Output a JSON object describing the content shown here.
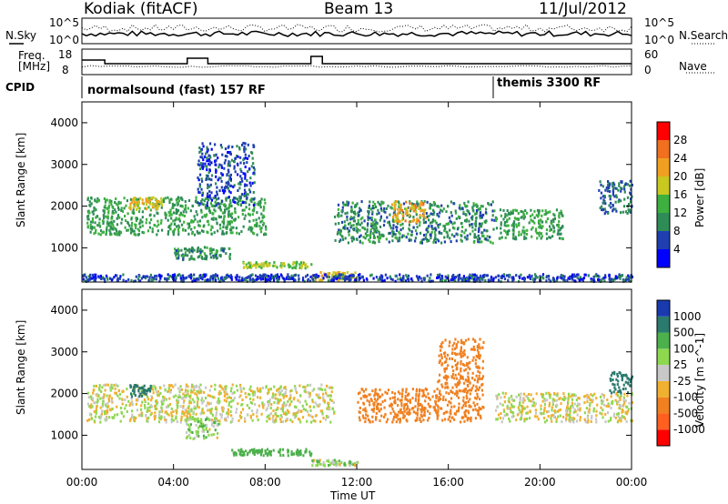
{
  "header": {
    "station": "Kodiak (fitACF)",
    "beam": "Beam 13",
    "date": "11/Jul/2012"
  },
  "side_labels": {
    "nsky": "N.Sky",
    "nsearch": "N.Search",
    "freq_line1": "Freq.",
    "freq_line2": "[MHz]",
    "nave": "Nave",
    "cpid": "CPID"
  },
  "noise_panel": {
    "left_ticks": [
      "10^5",
      "10^0"
    ],
    "right_ticks": [
      "10^5",
      "10^0"
    ]
  },
  "freq_panel": {
    "left_ticks": [
      "18",
      "8"
    ],
    "right_ticks": [
      "60",
      "0"
    ]
  },
  "cpid_panel": {
    "segments": [
      {
        "label": "normalsound (fast) 157 RF",
        "start": "00:00",
        "end": "18:00"
      },
      {
        "label": "themis 3300 RF",
        "start": "18:00",
        "end": "24:00"
      }
    ]
  },
  "colors": {
    "power": [
      "#0000ff",
      "#1f3fb0",
      "#2e8c57",
      "#3db040",
      "#c8c820",
      "#f0a020",
      "#f07020",
      "#ff0000"
    ],
    "velocity": [
      "#1a3ab0",
      "#2a7a6e",
      "#4cb04c",
      "#8ed850",
      "#c8c8c8",
      "#f0b030",
      "#f08020",
      "#ff6020",
      "#ff0000"
    ]
  },
  "chart_data": [
    {
      "type": "heatmap",
      "name": "power",
      "xlabel": "",
      "ylabel": "Slant Range [km]",
      "xlim": [
        "00:00",
        "24:00"
      ],
      "ylim": [
        180,
        4500
      ],
      "y_ticks": [
        "1000",
        "2000",
        "3000",
        "4000"
      ],
      "colorbar": {
        "label": "Power [dB]",
        "ticks": [
          "4",
          "8",
          "12",
          "16",
          "20",
          "24",
          "28"
        ],
        "range": [
          0,
          30
        ]
      },
      "regions": [
        {
          "t0": 0.2,
          "t1": 8.0,
          "r0": 1300,
          "r1": 2200,
          "level": 12
        },
        {
          "t0": 2.0,
          "t1": 3.5,
          "r0": 1900,
          "r1": 2200,
          "level": 20
        },
        {
          "t0": 4.0,
          "t1": 6.5,
          "r0": 700,
          "r1": 1000,
          "level": 10
        },
        {
          "t0": 5.0,
          "t1": 7.5,
          "r0": 2000,
          "r1": 3500,
          "level": 6
        },
        {
          "t0": 7.0,
          "t1": 10.0,
          "r0": 500,
          "r1": 650,
          "level": 16
        },
        {
          "t0": 10.0,
          "t1": 12.0,
          "r0": 200,
          "r1": 400,
          "level": 20
        },
        {
          "t0": 11.0,
          "t1": 18.0,
          "r0": 1100,
          "r1": 2100,
          "level": 10
        },
        {
          "t0": 13.5,
          "t1": 15.0,
          "r0": 1600,
          "r1": 2100,
          "level": 22
        },
        {
          "t0": 18.0,
          "t1": 21.0,
          "r0": 1200,
          "r1": 1900,
          "level": 12
        },
        {
          "t0": 22.5,
          "t1": 24.0,
          "r0": 1800,
          "r1": 2600,
          "level": 8
        },
        {
          "t0": 0.0,
          "t1": 24.0,
          "r0": 180,
          "r1": 350,
          "level": 6
        }
      ]
    },
    {
      "type": "heatmap",
      "name": "velocity",
      "xlabel": "Time UT",
      "ylabel": "Slant Range [km]",
      "xlim": [
        "00:00",
        "24:00"
      ],
      "ylim": [
        180,
        4500
      ],
      "x_ticks": [
        "00:00",
        "04:00",
        "08:00",
        "12:00",
        "16:00",
        "20:00",
        "00:00"
      ],
      "y_ticks": [
        "1000",
        "2000",
        "3000",
        "4000"
      ],
      "colorbar": {
        "label": "Velocity [m s^-1]",
        "ticks": [
          "1000",
          "500",
          "100",
          "25",
          "-25",
          "-100",
          "-500",
          "-1000"
        ]
      },
      "regions": [
        {
          "t0": 0.2,
          "t1": 11.0,
          "r0": 1300,
          "r1": 2200,
          "velocity": 0
        },
        {
          "t0": 2.0,
          "t1": 3.0,
          "r0": 1900,
          "r1": 2200,
          "velocity": 600
        },
        {
          "t0": 4.5,
          "t1": 6.0,
          "r0": 900,
          "r1": 1400,
          "velocity": 60
        },
        {
          "t0": 6.5,
          "t1": 10.0,
          "r0": 500,
          "r1": 650,
          "velocity": 300
        },
        {
          "t0": 10.0,
          "t1": 12.0,
          "r0": 250,
          "r1": 400,
          "velocity": 60
        },
        {
          "t0": 12.0,
          "t1": 17.5,
          "r0": 1300,
          "r1": 2100,
          "velocity": -300
        },
        {
          "t0": 15.5,
          "t1": 17.5,
          "r0": 2100,
          "r1": 3300,
          "velocity": -300
        },
        {
          "t0": 18.0,
          "t1": 24.0,
          "r0": 1300,
          "r1": 2000,
          "velocity": 0
        },
        {
          "t0": 23.0,
          "t1": 24.0,
          "r0": 2000,
          "r1": 2500,
          "velocity": 600
        }
      ]
    }
  ]
}
